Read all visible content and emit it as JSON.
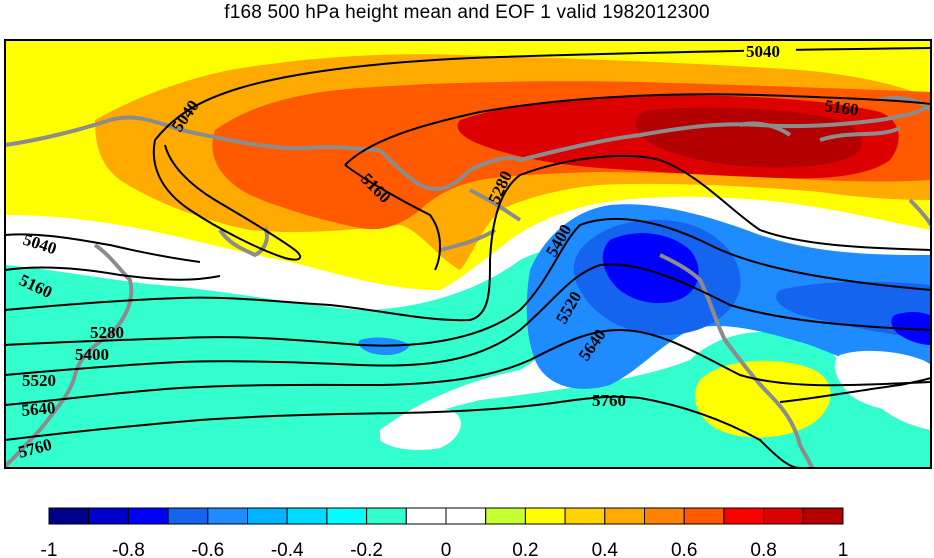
{
  "title": "f168 500 hPa height mean and EOF 1 valid 1982012300",
  "contour_levels": [
    "5040",
    "5160",
    "5280",
    "5400",
    "5520",
    "5640",
    "5760"
  ],
  "contour_labels": [
    {
      "text": "5040",
      "id": "contour-label-5040-top"
    },
    {
      "text": "5040",
      "id": "contour-label-5040-nw"
    },
    {
      "text": "5040",
      "id": "contour-label-5040-west"
    },
    {
      "text": "5160",
      "id": "contour-label-5160-ne"
    },
    {
      "text": "5160",
      "id": "contour-label-5160-center"
    },
    {
      "text": "5160",
      "id": "contour-label-5160-west"
    },
    {
      "text": "5280",
      "id": "contour-label-5280-center"
    },
    {
      "text": "5280",
      "id": "contour-label-5280-west"
    },
    {
      "text": "5400",
      "id": "contour-label-5400-center"
    },
    {
      "text": "5400",
      "id": "contour-label-5400-west"
    },
    {
      "text": "5520",
      "id": "contour-label-5520-center"
    },
    {
      "text": "5520",
      "id": "contour-label-5520-west"
    },
    {
      "text": "5640",
      "id": "contour-label-5640-center"
    },
    {
      "text": "5640",
      "id": "contour-label-5640-west"
    },
    {
      "text": "5760",
      "id": "contour-label-5760-center"
    },
    {
      "text": "5760",
      "id": "contour-label-5760-west"
    }
  ],
  "colorbar": {
    "min": -1,
    "max": 1,
    "step": 0.1,
    "colors": [
      "#00008b",
      "#0000cd",
      "#0000ff",
      "#1464f0",
      "#1e8cff",
      "#00b4ff",
      "#00dcff",
      "#00ffff",
      "#32ffcd",
      "#ffffff",
      "#ffffff",
      "#c8ff32",
      "#ffff00",
      "#ffd200",
      "#ffaa00",
      "#ff8200",
      "#ff5a00",
      "#ff0000",
      "#dc0000",
      "#b40000"
    ],
    "tick_labels": [
      "-1",
      "-0.8",
      "-0.6",
      "-0.4",
      "-0.2",
      "0",
      "0.2",
      "0.4",
      "0.6",
      "0.8",
      "1"
    ]
  },
  "colors": {
    "coastline": "#8c8c8c",
    "contour": "#000000"
  }
}
